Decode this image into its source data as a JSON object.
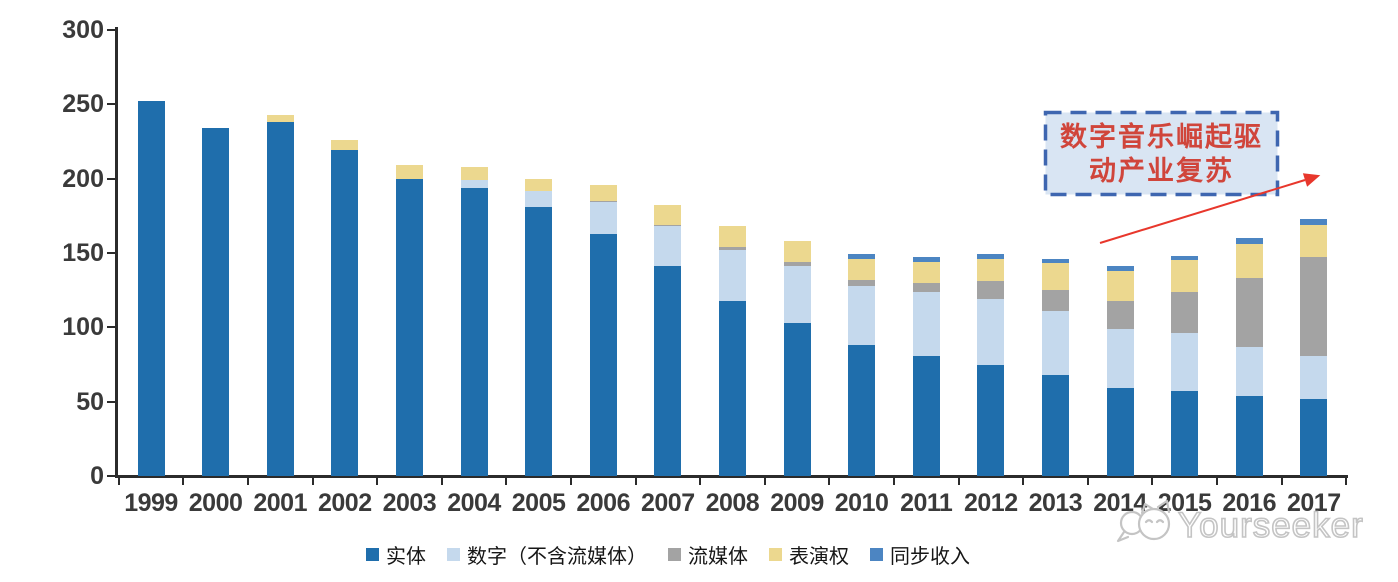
{
  "chart_data": {
    "type": "bar",
    "stacked": true,
    "title": "",
    "categories": [
      "1999",
      "2000",
      "2001",
      "2002",
      "2003",
      "2004",
      "2005",
      "2006",
      "2007",
      "2008",
      "2009",
      "2010",
      "2011",
      "2012",
      "2013",
      "2014",
      "2015",
      "2016",
      "2017"
    ],
    "series": [
      {
        "name": "实体",
        "color": "#1F6EAC",
        "values": [
          252,
          234,
          238,
          219,
          200,
          194,
          181,
          163,
          141,
          118,
          103,
          88,
          81,
          75,
          68,
          59,
          57,
          54,
          52
        ]
      },
      {
        "name": "数字（不含流媒体）",
        "color": "#C5D9ED",
        "values": [
          0,
          0,
          0,
          0,
          0,
          5,
          11,
          21,
          27,
          34,
          38,
          40,
          43,
          44,
          43,
          40,
          39,
          33,
          29
        ]
      },
      {
        "name": "流媒体",
        "color": "#A3A3A3",
        "values": [
          0,
          0,
          0,
          0,
          0,
          0,
          0,
          1,
          1,
          2,
          3,
          4,
          6,
          12,
          14,
          19,
          28,
          46,
          66
        ]
      },
      {
        "name": "表演权",
        "color": "#ECD88F",
        "values": [
          0,
          0,
          5,
          7,
          9,
          9,
          8,
          11,
          13,
          14,
          14,
          14,
          14,
          15,
          18,
          20,
          21,
          23,
          22
        ]
      },
      {
        "name": "同步收入",
        "color": "#4C85C2",
        "values": [
          0,
          0,
          0,
          0,
          0,
          0,
          0,
          0,
          0,
          0,
          0,
          3,
          3,
          3,
          3,
          3,
          3,
          4,
          4
        ]
      }
    ],
    "ylim": [
      0,
      300
    ],
    "yticks": [
      0,
      50,
      100,
      150,
      200,
      250,
      300
    ],
    "grid": false,
    "legend_position": "bottom"
  },
  "annotation": {
    "line1": "数字音乐崛起驱",
    "line2": "动产业复苏",
    "box_border_color": "#3E66B0",
    "box_fill_color": "#D9E5F3",
    "text_color": "#D0453B",
    "arrow_color": "#E8372C"
  },
  "watermark": {
    "text": "Yourseeker",
    "color": "#C4C4C4",
    "logo": "cat-logo"
  },
  "axis": {
    "color": "#2B2B2B",
    "label_color": "#3A3A3A"
  }
}
